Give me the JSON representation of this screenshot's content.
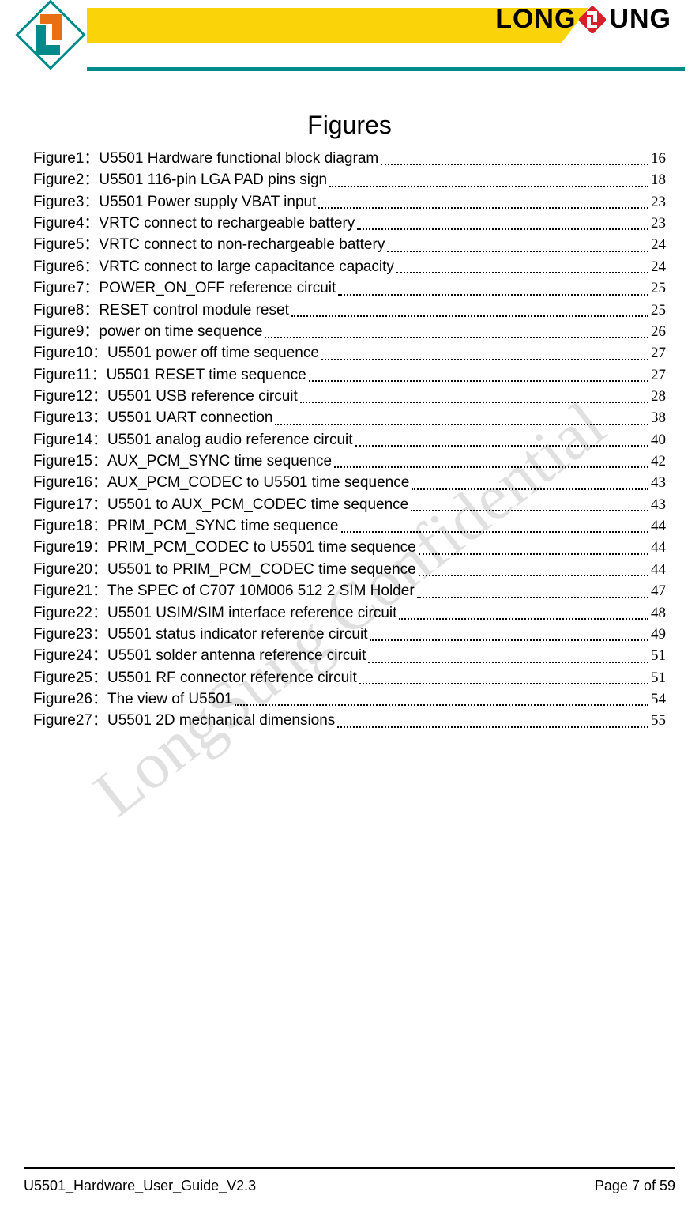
{
  "brand": {
    "left": "LONG",
    "right": "UNG"
  },
  "title": "Figures",
  "watermark": "LongSung Confidential",
  "toc": [
    {
      "label": "Figure1：U5501 Hardware functional block diagram",
      "page": "16"
    },
    {
      "label": "Figure2：U5501 116-pin LGA PAD pins sign",
      "page": "18"
    },
    {
      "label": "Figure3：U5501 Power supply VBAT input",
      "page": "23"
    },
    {
      "label": "Figure4：VRTC connect to rechargeable battery",
      "page": "23"
    },
    {
      "label": "Figure5：VRTC connect to non-rechargeable battery",
      "page": "24"
    },
    {
      "label": "Figure6：VRTC connect to large capacitance capacity",
      "page": "24"
    },
    {
      "label": "Figure7：POWER_ON_OFF reference circuit",
      "page": "25"
    },
    {
      "label": "Figure8：RESET control module reset",
      "page": "25"
    },
    {
      "label": "Figure9：power on time sequence",
      "page": "26"
    },
    {
      "label": "Figure10：U5501 power off time sequence",
      "page": "27"
    },
    {
      "label": "Figure11：U5501 RESET time sequence",
      "page": "27"
    },
    {
      "label": "Figure12：U5501 USB reference circuit",
      "page": "28"
    },
    {
      "label": "Figure13：U5501 UART connection",
      "page": "38"
    },
    {
      "label": "Figure14：U5501 analog audio reference circuit",
      "page": "40"
    },
    {
      "label": "Figure15：AUX_PCM_SYNC time sequence",
      "page": "42"
    },
    {
      "label": "Figure16：AUX_PCM_CODEC to U5501 time sequence",
      "page": "43"
    },
    {
      "label": "Figure17：U5501 to AUX_PCM_CODEC time sequence",
      "page": "43"
    },
    {
      "label": "Figure18：PRIM_PCM_SYNC time sequence",
      "page": "44"
    },
    {
      "label": "Figure19：PRIM_PCM_CODEC to U5501 time sequence",
      "page": "44"
    },
    {
      "label": "Figure20：U5501 to PRIM_PCM_CODEC time sequence",
      "page": "44"
    },
    {
      "label": "Figure21：The SPEC of C707 10M006 512 2 SIM Holder",
      "page": "47"
    },
    {
      "label": "Figure22：U5501 USIM/SIM interface reference circuit",
      "page": "48"
    },
    {
      "label": "Figure23：U5501 status indicator reference circuit",
      "page": "49"
    },
    {
      "label": "Figure24：U5501 solder antenna reference circuit",
      "page": "51"
    },
    {
      "label": "Figure25：U5501 RF connector reference circuit",
      "page": "51"
    },
    {
      "label": "Figure26：The view of U5501",
      "page": "54"
    },
    {
      "label": "Figure27：U5501 2D mechanical dimensions",
      "page": "55"
    }
  ],
  "footer": {
    "left": "U5501_Hardware_User_Guide_V2.3",
    "right": "Page 7 of 59"
  },
  "colors": {
    "yellow": "#fad308",
    "teal": "#008b8a",
    "red": "#d81e29",
    "orange": "#e86f14",
    "black": "#000000",
    "white": "#ffffff"
  }
}
